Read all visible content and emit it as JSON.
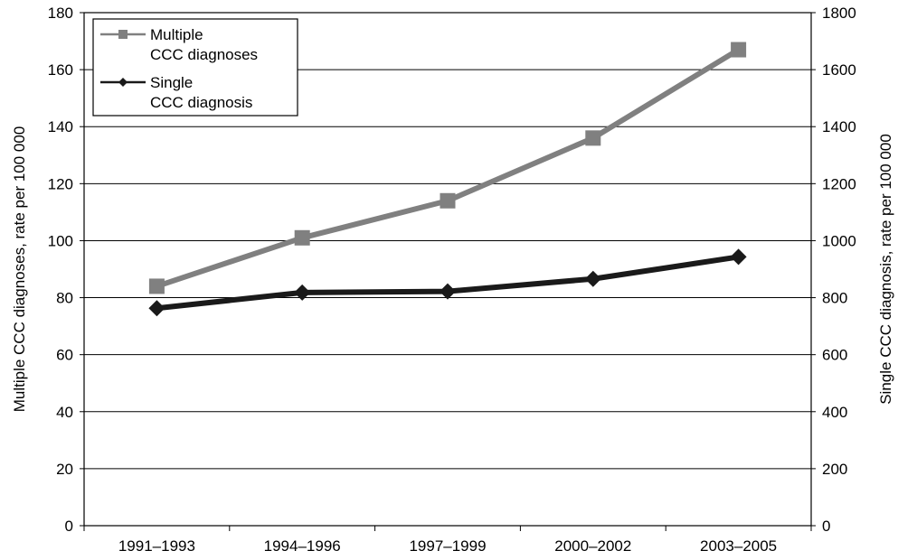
{
  "chart_data": {
    "type": "line",
    "categories": [
      "1991–1993",
      "1994–1996",
      "1997–1999",
      "2000–2002",
      "2003–2005"
    ],
    "series": [
      {
        "name": "Multiple\nCCC diagnoses",
        "axis": "left",
        "values": [
          84,
          101,
          114,
          136,
          167
        ],
        "color": "#808080",
        "marker": "square"
      },
      {
        "name": "Single\nCCC diagnosis",
        "axis": "right",
        "values": [
          763,
          818,
          822,
          866,
          943
        ],
        "color": "#1a1a1a",
        "marker": "diamond"
      }
    ],
    "ylabel_left": "Multiple CCC diagnoses, rate per 100 000",
    "ylabel_right": "Single CCC diagnosis, rate per 100 000",
    "ylim_left": [
      0,
      180
    ],
    "ylim_right": [
      0,
      1800
    ],
    "yticks_left": [
      "0",
      "20",
      "40",
      "60",
      "80",
      "100",
      "120",
      "140",
      "160",
      "180"
    ],
    "yticks_right": [
      "0",
      "200",
      "400",
      "600",
      "800",
      "1000",
      "1200",
      "1400",
      "1600",
      "1800"
    ],
    "grid": true,
    "legend_position": "top-left"
  }
}
